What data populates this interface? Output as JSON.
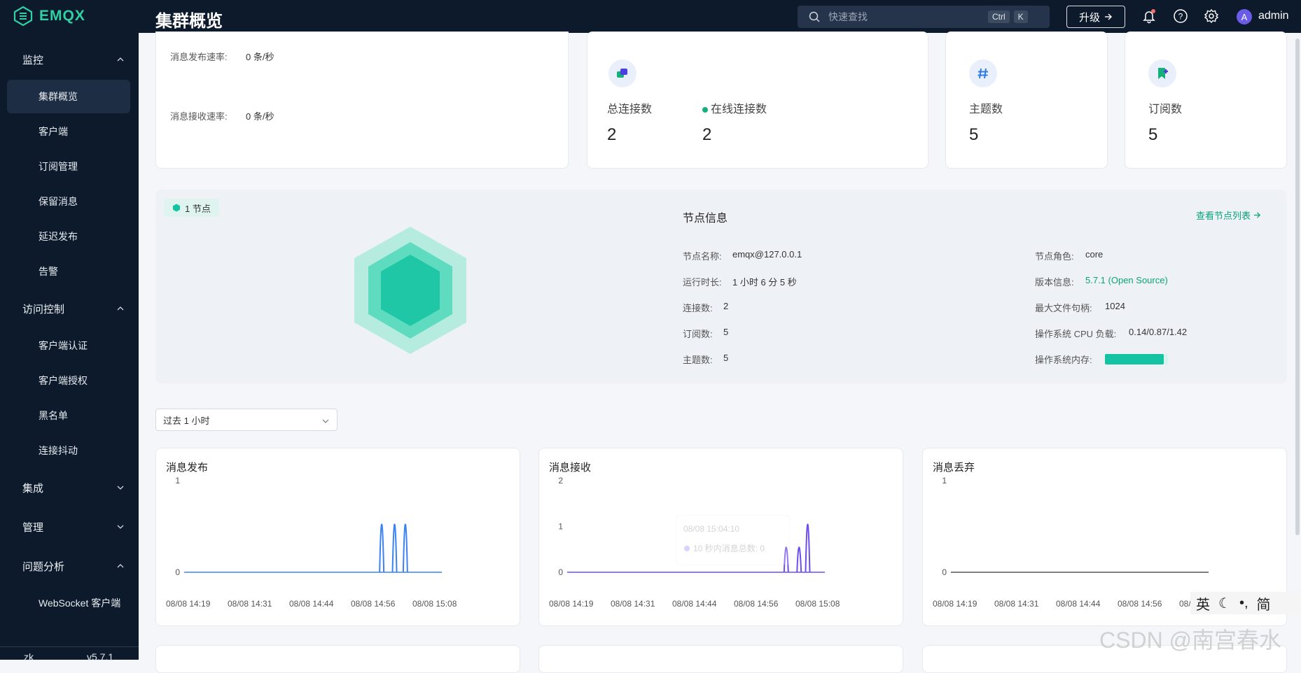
{
  "header": {
    "brand": "EMQX",
    "page_title": "集群概览",
    "search_placeholder": "快速查找",
    "shortcut_ctrl": "Ctrl",
    "shortcut_k": "K",
    "upgrade_label": "升级",
    "avatar_initial": "A",
    "username": "admin"
  },
  "sidebar": {
    "groups": [
      {
        "label": "监控",
        "expanded": true
      },
      {
        "label": "访问控制",
        "expanded": true
      },
      {
        "label": "集成",
        "expanded": false
      },
      {
        "label": "管理",
        "expanded": false
      },
      {
        "label": "问题分析",
        "expanded": true
      }
    ],
    "items": [
      {
        "label": "集群概览",
        "active": true
      },
      {
        "label": "客户端"
      },
      {
        "label": "订阅管理"
      },
      {
        "label": "保留消息"
      },
      {
        "label": "延迟发布"
      },
      {
        "label": "告警"
      },
      {
        "label": "客户端认证"
      },
      {
        "label": "客户端授权"
      },
      {
        "label": "黑名单"
      },
      {
        "label": "连接抖动"
      },
      {
        "label": "WebSocket 客户端"
      }
    ],
    "footer_left": "zk",
    "footer_right": "v5.7.1"
  },
  "rates": {
    "publish_label": "消息发布速率:",
    "publish_value": "0 条/秒",
    "receive_label": "消息接收速率:",
    "receive_value": "0 条/秒"
  },
  "stats": {
    "total_conn_label": "总连接数",
    "total_conn_value": "2",
    "online_conn_label": "在线连接数",
    "online_conn_value": "2",
    "topics_label": "主题数",
    "topics_value": "5",
    "subs_label": "订阅数",
    "subs_value": "5"
  },
  "node": {
    "tag": "1 节点",
    "title": "节点信息",
    "link": "查看节点列表",
    "left": [
      {
        "label": "节点名称:",
        "value": "emqx@127.0.0.1"
      },
      {
        "label": "运行时长:",
        "value": "1 小时 6 分 5 秒"
      },
      {
        "label": "连接数:",
        "value": "2"
      },
      {
        "label": "订阅数:",
        "value": "5"
      },
      {
        "label": "主题数:",
        "value": "5"
      }
    ],
    "right": [
      {
        "label": "节点角色:",
        "value": "core"
      },
      {
        "label": "版本信息:",
        "value": "5.7.1 (Open Source)"
      },
      {
        "label": "最大文件句柄:",
        "value": "1024"
      },
      {
        "label": "操作系统 CPU 负载:",
        "value": "0.14/0.87/1.42"
      },
      {
        "label": "操作系统内存:",
        "value": ""
      }
    ],
    "memory_fraction": 0.93,
    "version_color": "#0ba27a"
  },
  "range": {
    "selected": "过去 1 小时"
  },
  "chart_data": [
    {
      "type": "line",
      "title": "消息发布",
      "x": [
        "08/08 14:19",
        "08/08 14:31",
        "08/08 14:44",
        "08/08 14:56",
        "08/08 15:08"
      ],
      "ylim": [
        0,
        1
      ],
      "yticks": [
        "1",
        "0"
      ],
      "spikes_minutes": [
        46,
        49,
        51.5
      ],
      "spike_values": [
        1,
        1,
        1
      ],
      "x_span_minutes": [
        0,
        60
      ],
      "color": "#3b82f6"
    },
    {
      "type": "line",
      "title": "消息接收",
      "x": [
        "08/08 14:19",
        "08/08 14:31",
        "08/08 14:44",
        "08/08 14:56",
        "08/08 15:08"
      ],
      "ylim": [
        0,
        2
      ],
      "yticks": [
        "2",
        "1",
        "0"
      ],
      "spikes_minutes": [
        51,
        54,
        56
      ],
      "spike_values": [
        1,
        1,
        2
      ],
      "x_span_minutes": [
        0,
        60
      ],
      "color": "#6d4ef0",
      "tooltip_time": "08/08 15:04:10",
      "tooltip_text": "10 秒内消息总数:",
      "tooltip_value": "0"
    },
    {
      "type": "line",
      "title": "消息丢弃",
      "x": [
        "08/08 14:19",
        "08/08 14:31",
        "08/08 14:44",
        "08/08 14:56",
        "08/08"
      ],
      "ylim": [
        0,
        1
      ],
      "yticks": [
        "1",
        "0"
      ],
      "spikes_minutes": [],
      "spike_values": [],
      "x_span_minutes": [
        0,
        60
      ],
      "color": "#555555"
    }
  ],
  "ime": {
    "lang": "英",
    "mode": "简"
  },
  "watermark": "CSDN @南宫春水"
}
